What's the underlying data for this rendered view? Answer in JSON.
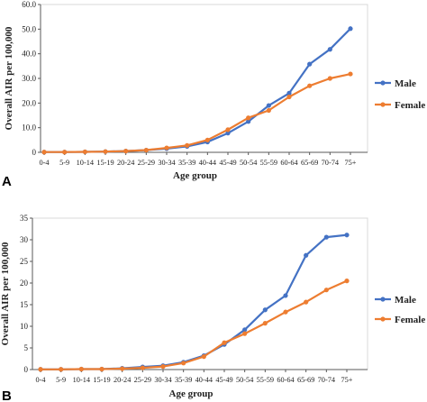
{
  "chart_data": [
    {
      "type": "line",
      "panel_label": "A",
      "xlabel": "Age group",
      "ylabel": "Overall AIR per 100,000",
      "ylim": [
        0,
        60
      ],
      "yticks": [
        "0",
        "10.0",
        "20.0",
        "30.0",
        "40.0",
        "50.0",
        "60.0"
      ],
      "categories": [
        "0-4",
        "5-9",
        "10-14",
        "15-19",
        "20-24",
        "25-29",
        "30-34",
        "35-39",
        "40-44",
        "45-49",
        "50-54",
        "55-59",
        "60-64",
        "65-69",
        "70-74",
        "75+"
      ],
      "legend_position": "right",
      "grid": false,
      "series": [
        {
          "name": "Male",
          "color": "#4472C4",
          "values": [
            0.1,
            0.1,
            0.2,
            0.3,
            0.5,
            0.9,
            1.5,
            2.4,
            4.2,
            7.8,
            12.5,
            19.0,
            24.0,
            35.8,
            41.8,
            50.2
          ]
        },
        {
          "name": "Female",
          "color": "#ED7D31",
          "values": [
            0.1,
            0.1,
            0.2,
            0.3,
            0.5,
            0.9,
            1.8,
            2.8,
            5.0,
            9.2,
            14.0,
            17.0,
            22.5,
            27.0,
            30.0,
            31.8
          ]
        }
      ]
    },
    {
      "type": "line",
      "panel_label": "B",
      "xlabel": "Age group",
      "ylabel": "Overall AIR per 100,000",
      "ylim": [
        0,
        35
      ],
      "yticks": [
        "0",
        "5",
        "10",
        "15",
        "20",
        "25",
        "30",
        "35"
      ],
      "categories": [
        "0-4",
        "5-9",
        "10-14",
        "15-19",
        "20-24",
        "25-29",
        "30-34",
        "35-39",
        "40-44",
        "45-49",
        "50-54",
        "55-59",
        "60-64",
        "65-69",
        "70-74",
        "75+"
      ],
      "legend_position": "right",
      "grid": false,
      "series": [
        {
          "name": "Male",
          "color": "#4472C4",
          "values": [
            0.05,
            0.05,
            0.1,
            0.1,
            0.3,
            0.6,
            0.9,
            1.7,
            3.2,
            5.8,
            9.2,
            13.8,
            17.1,
            26.4,
            30.6,
            31.1
          ]
        },
        {
          "name": "Female",
          "color": "#ED7D31",
          "values": [
            0.05,
            0.05,
            0.1,
            0.1,
            0.2,
            0.4,
            0.7,
            1.5,
            3.0,
            6.2,
            8.3,
            10.7,
            13.3,
            15.6,
            18.4,
            20.5
          ]
        }
      ]
    }
  ]
}
